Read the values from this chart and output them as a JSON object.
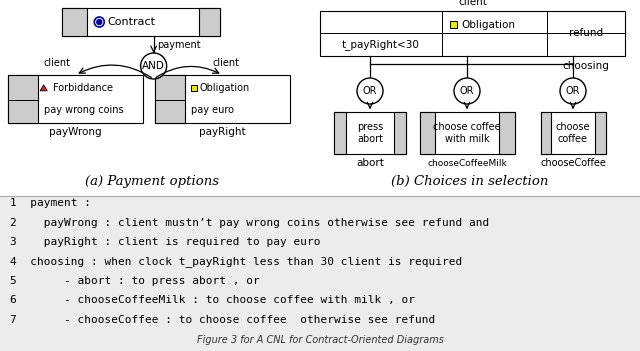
{
  "title_a": "(a) Payment options",
  "title_b": "(b) Choices in selection",
  "bg_color": "#ffffff",
  "code_bg": "#ececec",
  "code_lines": [
    "1  payment :",
    "2    payWrong : client mustn’t pay wrong coins otherwise see refund and",
    "3    payRight : client is required to pay euro",
    "4  choosing : when clock t_payRight less than 30 client is required",
    "5       - abort : to press abort , or",
    "6       - chooseCoffeeMilk : to choose coffee with milk , or",
    "7       - chooseCoffee : to choose coffee  otherwise see refund"
  ],
  "gray_light": "#cccccc",
  "yellow": "#e8e800",
  "red_tri": "#dd2222",
  "blue_dark": "#000099"
}
